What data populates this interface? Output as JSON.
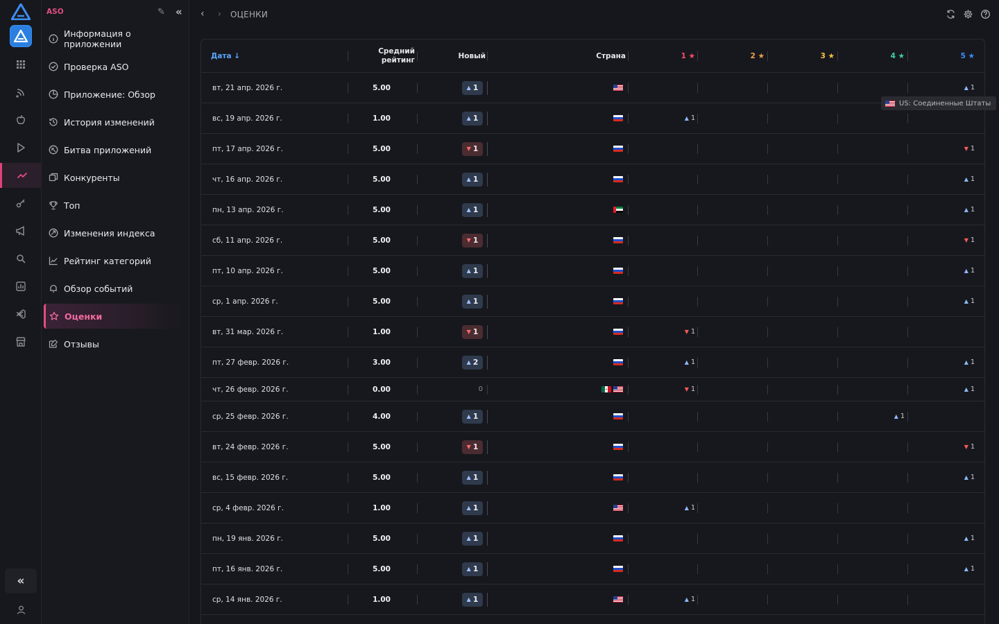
{
  "sidebar": {
    "header": "ASO",
    "items": [
      {
        "label": "Информация о приложении",
        "icon": "info-icon"
      },
      {
        "label": "Проверка ASO",
        "icon": "check-circle-icon"
      },
      {
        "label": "Приложение: Обзор",
        "icon": "pie-chart-icon"
      },
      {
        "label": "История изменений",
        "icon": "history-icon"
      },
      {
        "label": "Битва приложений",
        "icon": "versus-icon"
      },
      {
        "label": "Конкуренты",
        "icon": "competitors-icon"
      },
      {
        "label": "Топ",
        "icon": "trophy-icon"
      },
      {
        "label": "Изменения индекса",
        "icon": "index-icon"
      },
      {
        "label": "Рейтинг категорий",
        "icon": "chart-line-icon"
      },
      {
        "label": "Обзор событий",
        "icon": "bell-icon"
      },
      {
        "label": "Оценки",
        "icon": "star-icon"
      },
      {
        "label": "Отзывы",
        "icon": "reviews-icon"
      }
    ],
    "active": "Оценки"
  },
  "topbar": {
    "breadcrumb": "ОЦЕНКИ"
  },
  "table": {
    "headers": {
      "date": "Дата ↓",
      "avg_line1": "Средний",
      "avg_line2": "рейтинг",
      "new": "Новый",
      "country": "Страна",
      "s1": "1 ★",
      "s2": "2 ★",
      "s3": "3 ★",
      "s4": "4 ★",
      "s5": "5 ★"
    },
    "star_colors": [
      "#ff4d6a",
      "#f5a14a",
      "#f5c542",
      "#3fd0b0",
      "#3b8dff"
    ],
    "rows": [
      {
        "date": "вт, 21 апр. 2026 г.",
        "avg": "5.00",
        "new": "1",
        "dir": "up",
        "flags": [
          "us"
        ],
        "stars": [
          null,
          null,
          null,
          null,
          {
            "d": "up",
            "v": "1"
          }
        ]
      },
      {
        "date": "вс, 19 апр. 2026 г.",
        "avg": "1.00",
        "new": "1",
        "dir": "up",
        "flags": [
          "ru"
        ],
        "stars": [
          {
            "d": "up",
            "v": "1"
          },
          null,
          null,
          null,
          null
        ]
      },
      {
        "date": "пт, 17 апр. 2026 г.",
        "avg": "5.00",
        "new": "1",
        "dir": "down",
        "flags": [
          "ru"
        ],
        "stars": [
          null,
          null,
          null,
          null,
          {
            "d": "down",
            "v": "1"
          }
        ]
      },
      {
        "date": "чт, 16 апр. 2026 г.",
        "avg": "5.00",
        "new": "1",
        "dir": "up",
        "flags": [
          "ru"
        ],
        "stars": [
          null,
          null,
          null,
          null,
          {
            "d": "up",
            "v": "1"
          }
        ]
      },
      {
        "date": "пн, 13 апр. 2026 г.",
        "avg": "5.00",
        "new": "1",
        "dir": "up",
        "flags": [
          "ae"
        ],
        "stars": [
          null,
          null,
          null,
          null,
          {
            "d": "up",
            "v": "1"
          }
        ]
      },
      {
        "date": "сб, 11 апр. 2026 г.",
        "avg": "5.00",
        "new": "1",
        "dir": "down",
        "flags": [
          "ru"
        ],
        "stars": [
          null,
          null,
          null,
          null,
          {
            "d": "down",
            "v": "1"
          }
        ]
      },
      {
        "date": "пт, 10 апр. 2026 г.",
        "avg": "5.00",
        "new": "1",
        "dir": "up",
        "flags": [
          "ru"
        ],
        "stars": [
          null,
          null,
          null,
          null,
          {
            "d": "up",
            "v": "1"
          }
        ]
      },
      {
        "date": "ср, 1 апр. 2026 г.",
        "avg": "5.00",
        "new": "1",
        "dir": "up",
        "flags": [
          "ru"
        ],
        "stars": [
          null,
          null,
          null,
          null,
          {
            "d": "up",
            "v": "1"
          }
        ]
      },
      {
        "date": "вт, 31 мар. 2026 г.",
        "avg": "1.00",
        "new": "1",
        "dir": "down",
        "flags": [
          "ru"
        ],
        "stars": [
          {
            "d": "down",
            "v": "1"
          },
          null,
          null,
          null,
          null
        ]
      },
      {
        "date": "пт, 27 февр. 2026 г.",
        "avg": "3.00",
        "new": "2",
        "dir": "up",
        "flags": [
          "ru"
        ],
        "stars": [
          {
            "d": "up",
            "v": "1"
          },
          null,
          null,
          null,
          {
            "d": "up",
            "v": "1"
          }
        ]
      },
      {
        "date": "чт, 26 февр. 2026 г.",
        "avg": "0.00",
        "new": "0",
        "dir": "zero",
        "flags": [
          "mx",
          "us"
        ],
        "stars": [
          {
            "d": "down",
            "v": "1"
          },
          null,
          null,
          null,
          {
            "d": "up",
            "v": "1"
          }
        ]
      },
      {
        "date": "ср, 25 февр. 2026 г.",
        "avg": "4.00",
        "new": "1",
        "dir": "up",
        "flags": [
          "ru"
        ],
        "stars": [
          null,
          null,
          null,
          {
            "d": "up",
            "v": "1"
          },
          null
        ]
      },
      {
        "date": "вт, 24 февр. 2026 г.",
        "avg": "5.00",
        "new": "1",
        "dir": "down",
        "flags": [
          "ru"
        ],
        "stars": [
          null,
          null,
          null,
          null,
          {
            "d": "down",
            "v": "1"
          }
        ]
      },
      {
        "date": "вс, 15 февр. 2026 г.",
        "avg": "5.00",
        "new": "1",
        "dir": "up",
        "flags": [
          "ru"
        ],
        "stars": [
          null,
          null,
          null,
          null,
          {
            "d": "up",
            "v": "1"
          }
        ]
      },
      {
        "date": "ср, 4 февр. 2026 г.",
        "avg": "1.00",
        "new": "1",
        "dir": "up",
        "flags": [
          "us"
        ],
        "stars": [
          {
            "d": "up",
            "v": "1"
          },
          null,
          null,
          null,
          null
        ]
      },
      {
        "date": "пн, 19 янв. 2026 г.",
        "avg": "5.00",
        "new": "1",
        "dir": "up",
        "flags": [
          "ru"
        ],
        "stars": [
          null,
          null,
          null,
          null,
          {
            "d": "up",
            "v": "1"
          }
        ]
      },
      {
        "date": "пт, 16 янв. 2026 г.",
        "avg": "5.00",
        "new": "1",
        "dir": "up",
        "flags": [
          "ru"
        ],
        "stars": [
          null,
          null,
          null,
          null,
          {
            "d": "up",
            "v": "1"
          }
        ]
      },
      {
        "date": "ср, 14 янв. 2026 г.",
        "avg": "1.00",
        "new": "1",
        "dir": "up",
        "flags": [
          "us"
        ],
        "stars": [
          {
            "d": "up",
            "v": "1"
          },
          null,
          null,
          null,
          null
        ]
      }
    ]
  },
  "tooltip": {
    "text": "US: Соединенные Штаты",
    "flag": "us"
  }
}
